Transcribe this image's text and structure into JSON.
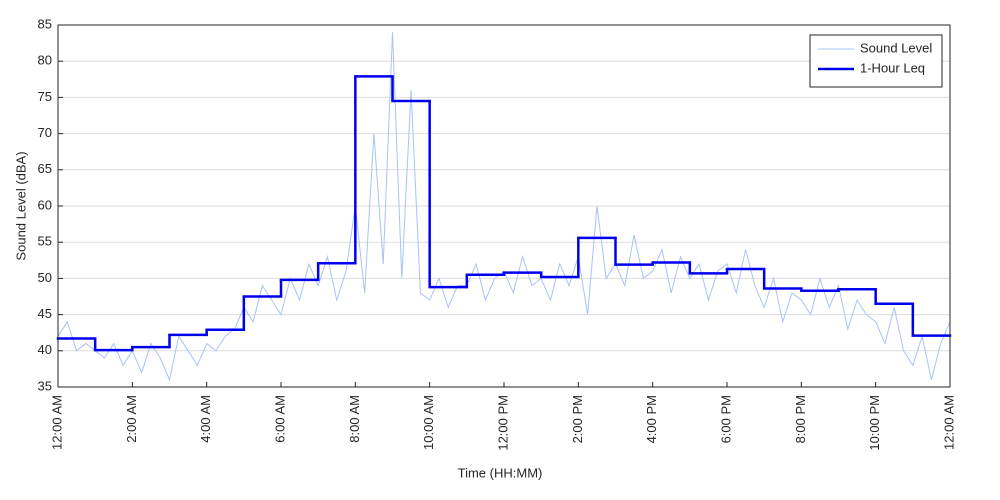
{
  "chart_data": {
    "type": "line",
    "xlabel": "Time (HH:MM)",
    "ylabel": "Sound Level (dBA)",
    "xlim": [
      0,
      24
    ],
    "ylim": [
      35,
      85
    ],
    "xticks": [
      {
        "value": 0,
        "label": "12:00 AM"
      },
      {
        "value": 2,
        "label": "2:00 AM"
      },
      {
        "value": 4,
        "label": "4:00 AM"
      },
      {
        "value": 6,
        "label": "6:00 AM"
      },
      {
        "value": 8,
        "label": "8:00 AM"
      },
      {
        "value": 10,
        "label": "10:00 AM"
      },
      {
        "value": 12,
        "label": "12:00 PM"
      },
      {
        "value": 14,
        "label": "2:00 PM"
      },
      {
        "value": 16,
        "label": "4:00 PM"
      },
      {
        "value": 18,
        "label": "6:00 PM"
      },
      {
        "value": 20,
        "label": "8:00 PM"
      },
      {
        "value": 22,
        "label": "10:00 PM"
      },
      {
        "value": 24,
        "label": "12:00 AM"
      }
    ],
    "yticks": [
      35,
      40,
      45,
      50,
      55,
      60,
      65,
      70,
      75,
      80,
      85
    ],
    "grid": true,
    "legend": "top-right",
    "series": [
      {
        "name": "Sound Level",
        "color": "#a9c3f5",
        "style": "line",
        "x": [
          0,
          0.25,
          0.5,
          0.75,
          1,
          1.25,
          1.5,
          1.75,
          2,
          2.25,
          2.5,
          2.75,
          3,
          3.25,
          3.5,
          3.75,
          4,
          4.25,
          4.5,
          4.75,
          5,
          5.25,
          5.5,
          5.75,
          6,
          6.25,
          6.5,
          6.75,
          7,
          7.25,
          7.5,
          7.75,
          8,
          8.25,
          8.5,
          8.75,
          9,
          9.25,
          9.5,
          9.75,
          10,
          10.25,
          10.5,
          10.75,
          11,
          11.25,
          11.5,
          11.75,
          12,
          12.25,
          12.5,
          12.75,
          13,
          13.25,
          13.5,
          13.75,
          14,
          14.25,
          14.5,
          14.75,
          15,
          15.25,
          15.5,
          15.75,
          16,
          16.25,
          16.5,
          16.75,
          17,
          17.25,
          17.5,
          17.75,
          18,
          18.25,
          18.5,
          18.75,
          19,
          19.25,
          19.5,
          19.75,
          20,
          20.25,
          20.5,
          20.75,
          21,
          21.25,
          21.5,
          21.75,
          22,
          22.25,
          22.5,
          22.75,
          23,
          23.25,
          23.5,
          23.75,
          24
        ],
        "values": [
          42,
          44,
          40,
          41,
          40,
          39,
          41,
          38,
          40,
          37,
          41,
          39,
          36,
          42,
          40,
          38,
          41,
          40,
          42,
          43,
          46,
          44,
          49,
          47,
          45,
          50,
          47,
          52,
          49,
          53,
          47,
          51,
          60,
          48,
          70,
          52,
          84,
          50,
          76,
          48,
          47,
          50,
          46,
          49,
          49,
          52,
          47,
          50,
          51,
          48,
          53,
          49,
          50,
          47,
          52,
          49,
          53,
          45,
          60,
          50,
          52,
          49,
          56,
          50,
          51,
          54,
          48,
          53,
          50,
          52,
          47,
          51,
          52,
          48,
          54,
          49,
          46,
          50,
          44,
          48,
          47,
          45,
          50,
          46,
          49,
          43,
          47,
          45,
          44,
          41,
          46,
          40,
          38,
          42,
          36,
          41,
          44
        ]
      },
      {
        "name": "1-Hour Leq",
        "color": "#0000ee",
        "style": "step",
        "x": [
          0,
          1,
          2,
          3,
          4,
          5,
          6,
          7,
          8,
          9,
          10,
          11,
          12,
          13,
          14,
          15,
          16,
          17,
          18,
          19,
          20,
          21,
          22,
          23
        ],
        "values": [
          41.7,
          40.1,
          40.5,
          42.2,
          42.9,
          47.5,
          49.8,
          52.1,
          77.9,
          74.5,
          48.8,
          50.5,
          50.8,
          50.2,
          55.6,
          51.9,
          52.2,
          50.7,
          51.3,
          48.6,
          48.3,
          48.5,
          46.5,
          42.1
        ]
      }
    ]
  }
}
